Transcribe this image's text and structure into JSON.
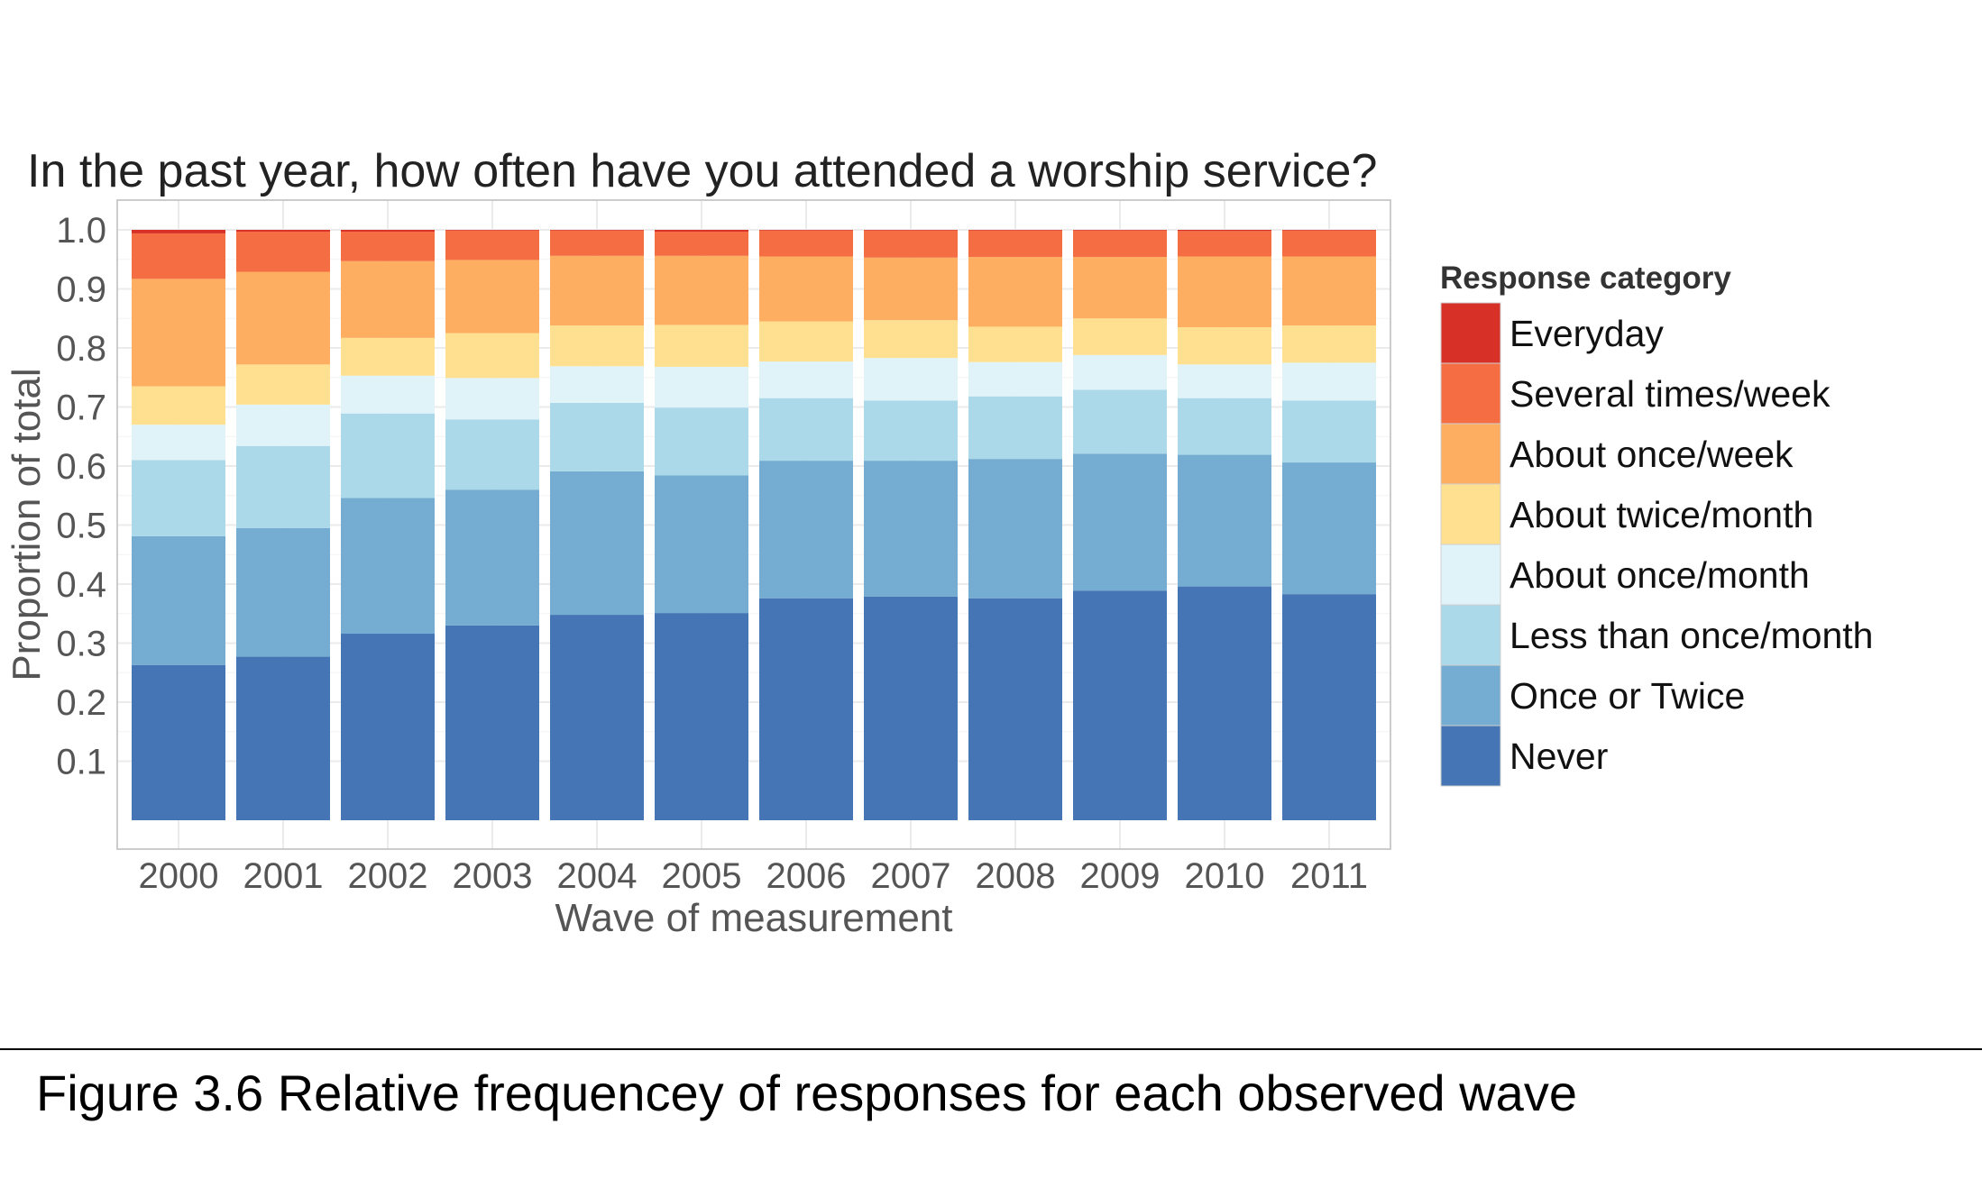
{
  "caption": "Figure 3.6 Relative frequencey of responses for each observed wave",
  "chart_data": {
    "type": "bar",
    "stacked": true,
    "title": "In the past year, how often have you attended a worship service?",
    "xlabel": "Wave of measurement",
    "ylabel": "Proportion of total",
    "ylim": [
      0,
      1
    ],
    "yticks": [
      "0.1",
      "0.2",
      "0.3",
      "0.4",
      "0.5",
      "0.6",
      "0.7",
      "0.8",
      "0.9",
      "1.0"
    ],
    "grid": true,
    "legend_title": "Response category",
    "legend_position": "right",
    "categories": [
      "2000",
      "2001",
      "2002",
      "2003",
      "2004",
      "2005",
      "2006",
      "2007",
      "2008",
      "2009",
      "2010",
      "2011"
    ],
    "series": [
      {
        "name": "Never",
        "color": "#4575b4",
        "values": [
          0.263,
          0.277,
          0.316,
          0.33,
          0.348,
          0.351,
          0.376,
          0.379,
          0.376,
          0.389,
          0.396,
          0.383
        ]
      },
      {
        "name": "Once or Twice",
        "color": "#74add1",
        "values": [
          0.218,
          0.218,
          0.23,
          0.23,
          0.243,
          0.233,
          0.233,
          0.23,
          0.236,
          0.232,
          0.223,
          0.223
        ]
      },
      {
        "name": "Less than once/month",
        "color": "#abd9e9",
        "values": [
          0.129,
          0.139,
          0.143,
          0.119,
          0.116,
          0.115,
          0.106,
          0.102,
          0.106,
          0.108,
          0.096,
          0.105
        ]
      },
      {
        "name": "About once/month",
        "color": "#e0f3f8",
        "values": [
          0.06,
          0.07,
          0.064,
          0.07,
          0.062,
          0.069,
          0.062,
          0.072,
          0.058,
          0.059,
          0.057,
          0.064
        ]
      },
      {
        "name": "About twice/month",
        "color": "#fee090",
        "values": [
          0.065,
          0.068,
          0.064,
          0.076,
          0.069,
          0.071,
          0.068,
          0.064,
          0.06,
          0.062,
          0.063,
          0.063
        ]
      },
      {
        "name": "About once/week",
        "color": "#fdae61",
        "values": [
          0.182,
          0.157,
          0.13,
          0.124,
          0.118,
          0.117,
          0.11,
          0.106,
          0.118,
          0.104,
          0.12,
          0.117
        ]
      },
      {
        "name": "Several times/week",
        "color": "#f46d43",
        "values": [
          0.077,
          0.068,
          0.05,
          0.05,
          0.043,
          0.041,
          0.044,
          0.046,
          0.045,
          0.045,
          0.043,
          0.044
        ]
      },
      {
        "name": "Everyday",
        "color": "#d73027",
        "values": [
          0.006,
          0.003,
          0.003,
          0.001,
          0.001,
          0.003,
          0.001,
          0.001,
          0.001,
          0.001,
          0.002,
          0.001
        ]
      }
    ]
  }
}
